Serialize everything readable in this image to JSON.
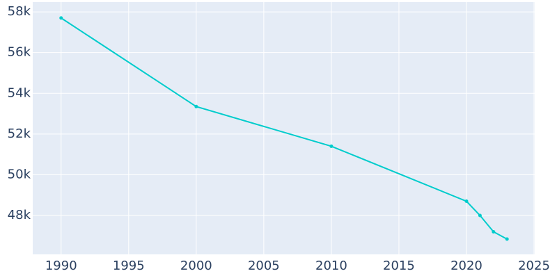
{
  "chart_data": {
    "type": "line",
    "x": [
      1990,
      2000,
      2010,
      2020,
      2021,
      2022,
      2023
    ],
    "series": [
      {
        "color": "#00cccc",
        "values": [
          57700,
          53350,
          51400,
          48700,
          48000,
          47200,
          46840
        ]
      }
    ],
    "xlim": [
      1987.9,
      2025.05
    ],
    "xticks": [
      1990,
      1995,
      2000,
      2005,
      2010,
      2015,
      2020,
      2025
    ],
    "ylim": [
      46090,
      58480
    ],
    "yticks": [
      {
        "value": 48000,
        "label": "48k"
      },
      {
        "value": 50000,
        "label": "50k"
      },
      {
        "value": 52000,
        "label": "52k"
      },
      {
        "value": 54000,
        "label": "54k"
      },
      {
        "value": 56000,
        "label": "56k"
      },
      {
        "value": 58000,
        "label": "58k"
      }
    ],
    "grid": true
  }
}
